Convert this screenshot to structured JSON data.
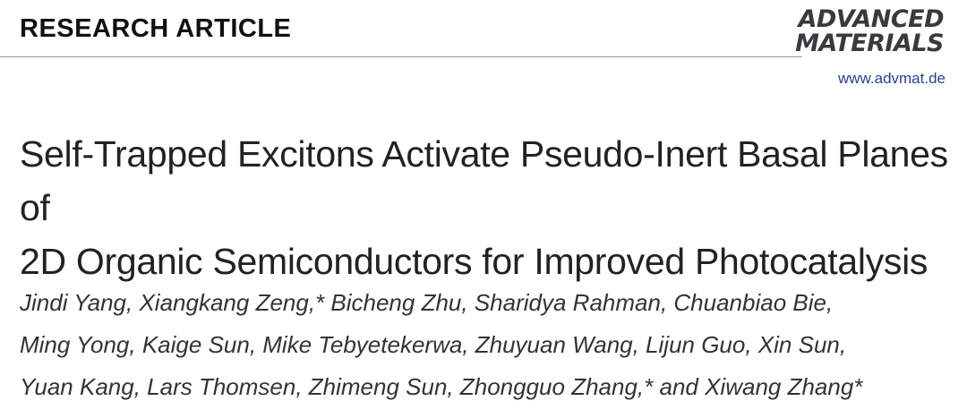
{
  "header": {
    "section_label": "RESEARCH ARTICLE",
    "journal_logo": [
      "ADVANCED",
      "MATERIALS"
    ],
    "journal_url": "www.advmat.de"
  },
  "article": {
    "title_lines": [
      "Self-Trapped Excitons Activate Pseudo-Inert Basal Planes of",
      "2D Organic Semiconductors for Improved Photocatalysis"
    ],
    "author_lines": [
      "Jindi Yang, Xiangkang Zeng,* Bicheng Zhu, Sharidya Rahman, Chuanbiao Bie,",
      "Ming Yong, Kaige Sun, Mike Tebyetekerwa, Zhuyuan Wang, Lijun Guo, Xin Sun,",
      "Yuan Kang, Lars Thomsen, Zhimeng Sun, Zhongguo Zhang,* and Xiwang Zhang*"
    ]
  }
}
